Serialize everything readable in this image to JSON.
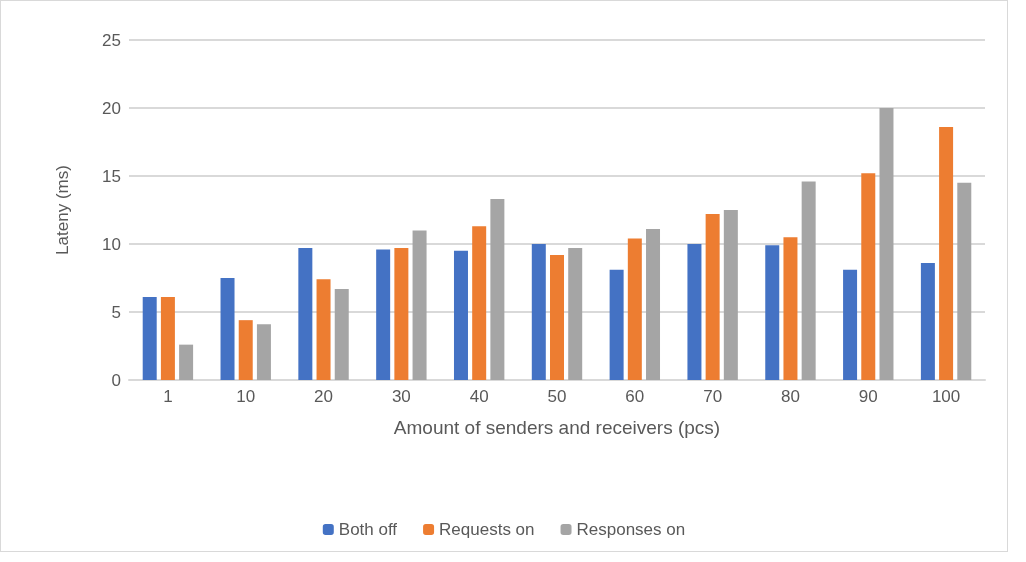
{
  "chart_data": {
    "type": "bar",
    "xlabel": "Amount of senders and receivers (pcs)",
    "ylabel": "Lateny (ms)",
    "categories": [
      "1",
      "10",
      "20",
      "30",
      "40",
      "50",
      "60",
      "70",
      "80",
      "90",
      "100"
    ],
    "series": [
      {
        "name": "Both off",
        "color": "#4472c4",
        "values": [
          6.1,
          7.5,
          9.7,
          9.6,
          9.5,
          10.0,
          8.1,
          10.0,
          9.9,
          8.1,
          8.6
        ]
      },
      {
        "name": "Requests on",
        "color": "#ed7d31",
        "values": [
          6.1,
          4.4,
          7.4,
          9.7,
          11.3,
          9.2,
          10.4,
          12.2,
          10.5,
          15.2,
          18.6
        ]
      },
      {
        "name": "Responses on",
        "color": "#a5a5a5",
        "values": [
          2.6,
          4.1,
          6.7,
          11.0,
          13.3,
          9.7,
          11.1,
          12.5,
          14.6,
          20.0,
          14.5
        ]
      }
    ],
    "ylim": [
      0,
      25
    ],
    "yticks": [
      0,
      5,
      10,
      15,
      20,
      25
    ],
    "grid": "y",
    "legend": "bottom"
  }
}
